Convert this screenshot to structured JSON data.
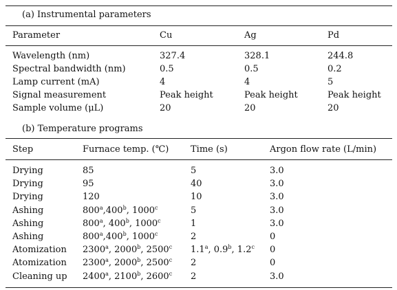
{
  "section_a": {
    "title": "(a) Instrumental parameters",
    "header": [
      "Parameter",
      "Cu",
      "Ag",
      "Pd"
    ],
    "rows": [
      [
        "Wavelength (nm)",
        "327.4",
        "328.1",
        "244.8"
      ],
      [
        "Spectral bandwidth (nm)",
        "0.5",
        "0.5",
        "0.2"
      ],
      [
        "Lamp current (mA)",
        "4",
        "4",
        "5"
      ],
      [
        "Signal measurement",
        "Peak height",
        "Peak height",
        "Peak height"
      ],
      [
        "Sample volume (μL)",
        "20",
        "20",
        "20"
      ]
    ]
  },
  "section_b": {
    "title": "(b) Temperature programs",
    "header": [
      "Step",
      "Furnace temp. (℃)",
      "Time (s)",
      "Argon flow rate (L/min)"
    ],
    "rows": [
      [
        "Drying",
        "85",
        "5",
        "3.0"
      ],
      [
        "Drying",
        "95",
        "40",
        "3.0"
      ],
      [
        "Drying",
        "120",
        "10",
        "3.0"
      ],
      [
        "Ashing",
        [
          {
            "text": "800",
            "sup": "a"
          },
          {
            "text": ",400",
            "sup": "b"
          },
          {
            "text": ", 1000",
            "sup": "c"
          }
        ],
        "5",
        "3.0"
      ],
      [
        "Ashing",
        [
          {
            "text": "800",
            "sup": "a"
          },
          {
            "text": ", 400",
            "sup": "b"
          },
          {
            "text": ", 1000",
            "sup": "c"
          }
        ],
        "1",
        "3.0"
      ],
      [
        "Ashing",
        [
          {
            "text": "800",
            "sup": "a"
          },
          {
            "text": ",400",
            "sup": "b"
          },
          {
            "text": ", 1000",
            "sup": "c"
          }
        ],
        "2",
        "0"
      ],
      [
        "Atomization",
        [
          {
            "text": "2300",
            "sup": "a"
          },
          {
            "text": ", 2000",
            "sup": "b"
          },
          {
            "text": ", 2500",
            "sup": "c"
          }
        ],
        [
          {
            "text": "1.1",
            "sup": "a"
          },
          {
            "text": ", 0.9",
            "sup": "b"
          },
          {
            "text": ", 1.2",
            "sup": "c"
          }
        ],
        "0"
      ],
      [
        "Atomization",
        [
          {
            "text": "2300",
            "sup": "a"
          },
          {
            "text": ", 2000",
            "sup": "b"
          },
          {
            "text": ", 2500",
            "sup": "c"
          }
        ],
        "2",
        "0"
      ],
      [
        "Cleaning up",
        [
          {
            "text": "2400",
            "sup": "a"
          },
          {
            "text": ", 2100",
            "sup": "b"
          },
          {
            "text": ", 2600",
            "sup": "c"
          }
        ],
        "2",
        "3.0"
      ]
    ]
  }
}
